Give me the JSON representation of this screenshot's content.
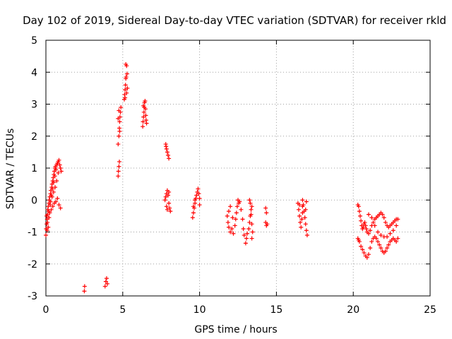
{
  "chart_data": {
    "type": "scatter",
    "title": "Day 102 of 2019, Sidereal Day-to-day VTEC variation (SDTVAR) for receiver rkld",
    "xlabel": "GPS time / hours",
    "ylabel": "SDTVAR / TECUs",
    "xlim": [
      0,
      25
    ],
    "ylim": [
      -3,
      5
    ],
    "xticks": [
      "0",
      "5",
      "10",
      "15",
      "20",
      "25"
    ],
    "yticks": [
      "-3",
      "-2",
      "-1",
      "0",
      "1",
      "2",
      "3",
      "4",
      "5"
    ],
    "grid": true,
    "marker": "+",
    "color": "#ff0000",
    "series": [
      {
        "name": "SDTVAR",
        "points": [
          [
            0.0,
            -1.1
          ],
          [
            0.02,
            -0.9
          ],
          [
            0.05,
            -0.75
          ],
          [
            0.08,
            -0.6
          ],
          [
            0.1,
            -0.45
          ],
          [
            0.12,
            -0.3
          ],
          [
            0.15,
            -0.2
          ],
          [
            0.18,
            -0.35
          ],
          [
            0.2,
            -0.1
          ],
          [
            0.22,
            0.0
          ],
          [
            0.25,
            0.1
          ],
          [
            0.28,
            -0.15
          ],
          [
            0.3,
            0.2
          ],
          [
            0.32,
            0.3
          ],
          [
            0.35,
            0.15
          ],
          [
            0.38,
            0.4
          ],
          [
            0.4,
            0.5
          ],
          [
            0.42,
            0.35
          ],
          [
            0.45,
            0.6
          ],
          [
            0.48,
            0.7
          ],
          [
            0.5,
            0.55
          ],
          [
            0.52,
            0.8
          ],
          [
            0.55,
            0.9
          ],
          [
            0.58,
            0.75
          ],
          [
            0.6,
            1.0
          ],
          [
            0.62,
            1.05
          ],
          [
            0.65,
            0.95
          ],
          [
            0.7,
            1.1
          ],
          [
            0.75,
            1.15
          ],
          [
            0.8,
            1.2
          ],
          [
            0.85,
            1.25
          ],
          [
            0.9,
            1.1
          ],
          [
            0.95,
            1.0
          ],
          [
            1.0,
            0.9
          ],
          [
            0.35,
            -0.3
          ],
          [
            0.45,
            -0.2
          ],
          [
            0.55,
            -0.1
          ],
          [
            0.65,
            -0.05
          ],
          [
            0.75,
            0.05
          ],
          [
            0.85,
            -0.15
          ],
          [
            0.95,
            -0.25
          ],
          [
            0.05,
            -0.5
          ],
          [
            0.1,
            -0.7
          ],
          [
            0.15,
            -0.85
          ],
          [
            0.08,
            -0.95
          ],
          [
            0.2,
            -0.55
          ],
          [
            0.25,
            -0.4
          ],
          [
            0.3,
            -0.05
          ],
          [
            0.4,
            0.1
          ],
          [
            0.5,
            0.25
          ],
          [
            0.6,
            0.4
          ],
          [
            0.7,
            0.6
          ],
          [
            0.8,
            0.85
          ],
          [
            2.5,
            -2.85
          ],
          [
            2.52,
            -2.7
          ],
          [
            3.85,
            -2.7
          ],
          [
            3.9,
            -2.55
          ],
          [
            3.95,
            -2.45
          ],
          [
            4.0,
            -2.62
          ],
          [
            4.7,
            0.75
          ],
          [
            4.72,
            0.9
          ],
          [
            4.75,
            1.05
          ],
          [
            4.78,
            1.2
          ],
          [
            4.7,
            1.75
          ],
          [
            4.75,
            2.0
          ],
          [
            4.78,
            2.25
          ],
          [
            4.8,
            2.45
          ],
          [
            4.82,
            2.6
          ],
          [
            4.85,
            2.75
          ],
          [
            4.88,
            2.9
          ],
          [
            4.75,
            2.8
          ],
          [
            4.7,
            2.55
          ],
          [
            4.8,
            2.15
          ],
          [
            5.1,
            3.15
          ],
          [
            5.12,
            3.3
          ],
          [
            5.15,
            3.45
          ],
          [
            5.18,
            3.6
          ],
          [
            5.2,
            3.8
          ],
          [
            5.22,
            3.85
          ],
          [
            5.25,
            4.2
          ],
          [
            5.2,
            4.25
          ],
          [
            5.28,
            3.95
          ],
          [
            5.3,
            3.5
          ],
          [
            5.15,
            3.2
          ],
          [
            5.25,
            3.35
          ],
          [
            6.3,
            2.3
          ],
          [
            6.32,
            2.45
          ],
          [
            6.35,
            2.6
          ],
          [
            6.38,
            2.75
          ],
          [
            6.4,
            2.9
          ],
          [
            6.42,
            3.05
          ],
          [
            6.45,
            3.1
          ],
          [
            6.48,
            2.85
          ],
          [
            6.5,
            2.65
          ],
          [
            6.52,
            2.5
          ],
          [
            6.55,
            2.4
          ],
          [
            6.35,
            2.95
          ],
          [
            7.8,
            1.75
          ],
          [
            7.85,
            1.6
          ],
          [
            7.9,
            1.5
          ],
          [
            7.95,
            1.4
          ],
          [
            8.0,
            1.3
          ],
          [
            7.82,
            1.68
          ],
          [
            7.75,
            0.0
          ],
          [
            7.8,
            0.1
          ],
          [
            7.85,
            0.2
          ],
          [
            7.9,
            0.3
          ],
          [
            7.95,
            0.15
          ],
          [
            8.0,
            -0.1
          ],
          [
            8.05,
            -0.25
          ],
          [
            8.1,
            -0.35
          ],
          [
            7.85,
            -0.2
          ],
          [
            7.9,
            -0.3
          ],
          [
            8.0,
            0.25
          ],
          [
            9.55,
            -0.55
          ],
          [
            9.6,
            -0.4
          ],
          [
            9.65,
            -0.25
          ],
          [
            9.7,
            -0.1
          ],
          [
            9.75,
            0.05
          ],
          [
            9.8,
            0.15
          ],
          [
            9.85,
            0.25
          ],
          [
            9.9,
            0.35
          ],
          [
            9.95,
            0.2
          ],
          [
            10.0,
            0.05
          ],
          [
            10.0,
            -0.15
          ],
          [
            9.7,
            0.0
          ],
          [
            9.6,
            -0.2
          ],
          [
            11.8,
            -0.5
          ],
          [
            11.85,
            -0.7
          ],
          [
            11.9,
            -0.85
          ],
          [
            12.0,
            -1.0
          ],
          [
            12.1,
            -0.9
          ],
          [
            12.2,
            -1.05
          ],
          [
            12.3,
            -0.8
          ],
          [
            12.35,
            -0.6
          ],
          [
            12.4,
            -0.4
          ],
          [
            12.45,
            -0.2
          ],
          [
            12.5,
            0.0
          ],
          [
            12.55,
            -0.1
          ],
          [
            12.6,
            -0.05
          ],
          [
            12.7,
            -0.3
          ],
          [
            12.8,
            -0.6
          ],
          [
            12.85,
            -0.9
          ],
          [
            12.9,
            -1.1
          ],
          [
            11.9,
            -0.35
          ],
          [
            12.0,
            -0.2
          ],
          [
            12.15,
            -0.55
          ],
          [
            13.0,
            -1.35
          ],
          [
            13.05,
            -1.2
          ],
          [
            13.1,
            -1.05
          ],
          [
            13.2,
            -0.9
          ],
          [
            13.25,
            -0.7
          ],
          [
            13.3,
            -0.5
          ],
          [
            13.35,
            -0.3
          ],
          [
            13.3,
            -0.1
          ],
          [
            13.25,
            0.0
          ],
          [
            13.4,
            -0.2
          ],
          [
            13.35,
            -0.45
          ],
          [
            13.4,
            -0.75
          ],
          [
            13.45,
            -1.0
          ],
          [
            13.4,
            -1.2
          ],
          [
            14.3,
            -0.25
          ],
          [
            14.35,
            -0.4
          ],
          [
            14.3,
            -0.7
          ],
          [
            14.35,
            -0.8
          ],
          [
            14.4,
            -0.75
          ],
          [
            16.4,
            -0.1
          ],
          [
            16.45,
            -0.3
          ],
          [
            16.5,
            -0.5
          ],
          [
            16.55,
            -0.7
          ],
          [
            16.6,
            -0.85
          ],
          [
            16.65,
            -0.6
          ],
          [
            16.7,
            -0.4
          ],
          [
            16.7,
            -0.2
          ],
          [
            16.7,
            0.0
          ],
          [
            16.75,
            -0.15
          ],
          [
            16.8,
            -0.35
          ],
          [
            16.85,
            -0.55
          ],
          [
            16.9,
            -0.75
          ],
          [
            16.95,
            -0.95
          ],
          [
            17.0,
            -1.1
          ],
          [
            16.9,
            -0.3
          ],
          [
            16.95,
            -0.05
          ],
          [
            16.5,
            -0.15
          ],
          [
            20.3,
            -0.15
          ],
          [
            20.35,
            -0.2
          ],
          [
            20.4,
            -0.35
          ],
          [
            20.45,
            -0.5
          ],
          [
            20.5,
            -0.65
          ],
          [
            20.55,
            -0.8
          ],
          [
            20.6,
            -0.9
          ],
          [
            20.65,
            -0.85
          ],
          [
            20.7,
            -0.75
          ],
          [
            20.75,
            -0.7
          ],
          [
            20.8,
            -0.8
          ],
          [
            20.85,
            -0.9
          ],
          [
            20.9,
            -1.0
          ],
          [
            21.0,
            -1.05
          ],
          [
            21.1,
            -0.95
          ],
          [
            21.2,
            -0.8
          ],
          [
            21.3,
            -0.7
          ],
          [
            21.4,
            -0.6
          ],
          [
            21.5,
            -0.55
          ],
          [
            21.6,
            -0.5
          ],
          [
            21.7,
            -0.45
          ],
          [
            21.8,
            -0.4
          ],
          [
            21.9,
            -0.45
          ],
          [
            22.0,
            -0.55
          ],
          [
            22.1,
            -0.7
          ],
          [
            22.2,
            -0.8
          ],
          [
            22.3,
            -0.85
          ],
          [
            22.4,
            -0.8
          ],
          [
            22.5,
            -0.75
          ],
          [
            22.6,
            -0.7
          ],
          [
            22.7,
            -0.65
          ],
          [
            22.8,
            -0.6
          ],
          [
            22.9,
            -0.6
          ],
          [
            20.3,
            -1.2
          ],
          [
            20.35,
            -1.25
          ],
          [
            20.4,
            -1.3
          ],
          [
            20.5,
            -1.45
          ],
          [
            20.6,
            -1.55
          ],
          [
            20.7,
            -1.65
          ],
          [
            20.8,
            -1.75
          ],
          [
            20.9,
            -1.8
          ],
          [
            21.0,
            -1.7
          ],
          [
            21.1,
            -1.5
          ],
          [
            21.2,
            -1.3
          ],
          [
            21.3,
            -1.2
          ],
          [
            21.4,
            -1.15
          ],
          [
            21.5,
            -1.2
          ],
          [
            21.6,
            -1.3
          ],
          [
            21.7,
            -1.4
          ],
          [
            21.8,
            -1.5
          ],
          [
            21.9,
            -1.6
          ],
          [
            22.0,
            -1.65
          ],
          [
            22.1,
            -1.6
          ],
          [
            22.2,
            -1.5
          ],
          [
            22.3,
            -1.4
          ],
          [
            22.4,
            -1.3
          ],
          [
            22.5,
            -1.25
          ],
          [
            22.6,
            -1.2
          ],
          [
            22.7,
            -1.25
          ],
          [
            22.8,
            -1.3
          ],
          [
            22.9,
            -1.2
          ],
          [
            21.0,
            -0.45
          ],
          [
            21.2,
            -0.55
          ],
          [
            21.4,
            -0.8
          ],
          [
            21.6,
            -1.0
          ],
          [
            21.8,
            -1.1
          ],
          [
            22.0,
            -1.15
          ],
          [
            22.2,
            -1.15
          ],
          [
            22.4,
            -1.05
          ],
          [
            22.6,
            -0.95
          ],
          [
            22.8,
            -0.8
          ]
        ]
      }
    ]
  }
}
